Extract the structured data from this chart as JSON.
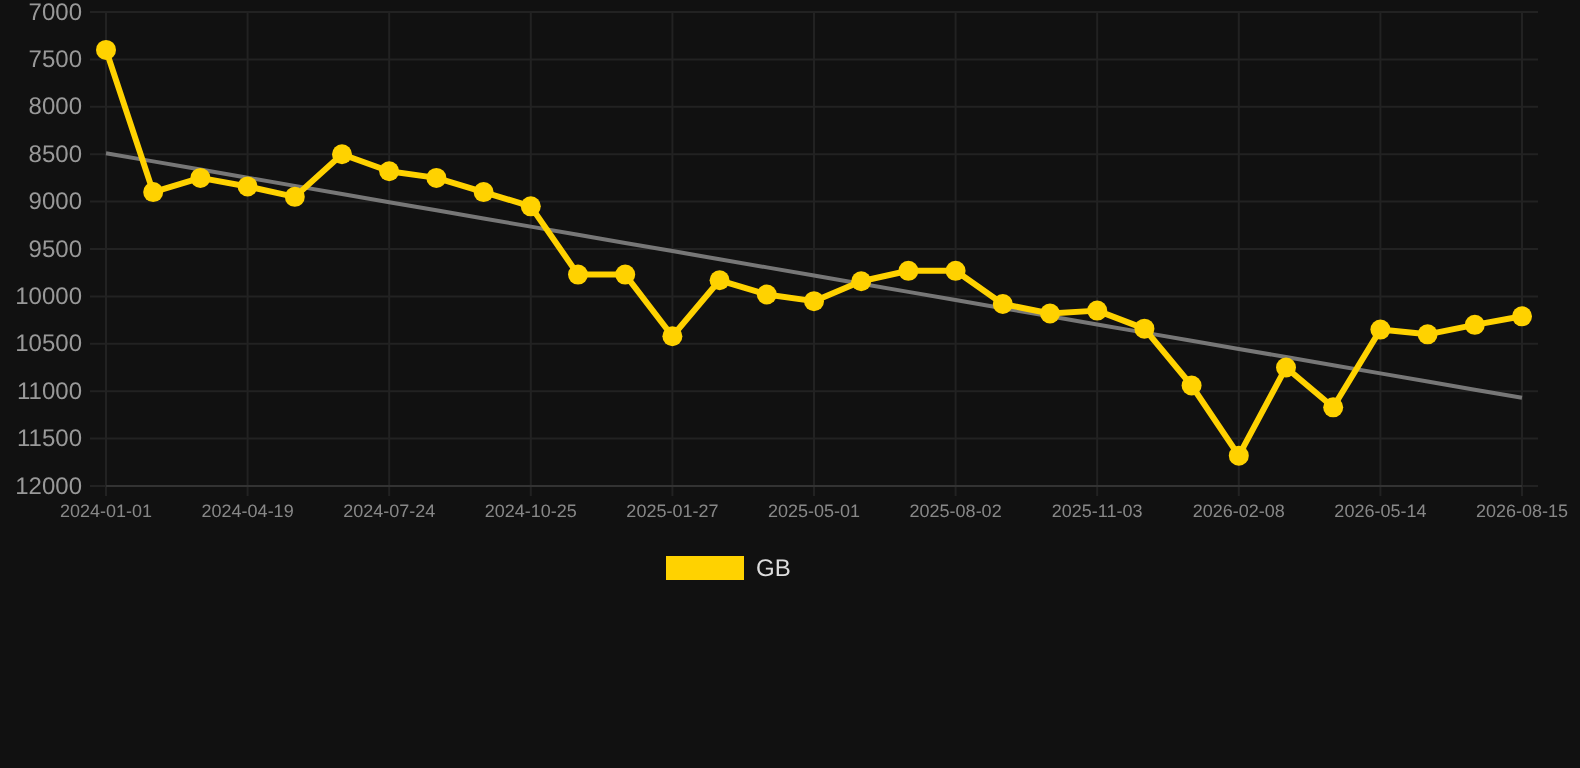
{
  "chart_data": {
    "type": "line",
    "categories": [
      "2024-01-01",
      null,
      null,
      "2024-04-19",
      null,
      null,
      "2024-07-24",
      null,
      null,
      "2024-10-25",
      null,
      null,
      "2025-01-27",
      null,
      null,
      "2025-05-01",
      null,
      null,
      "2025-08-02",
      null,
      null,
      "2025-11-03",
      null,
      null,
      "2026-02-08",
      null,
      null,
      "2026-05-14",
      null,
      null,
      "2026-08-15"
    ],
    "series": [
      {
        "name": "GB",
        "color": "#ffd200",
        "marker": "circle",
        "values": [
          7400,
          8900,
          8750,
          8840,
          8950,
          8500,
          8680,
          8750,
          8900,
          9050,
          9770,
          9770,
          10420,
          9830,
          9980,
          10050,
          9840,
          9730,
          9730,
          10080,
          10180,
          10150,
          10340,
          10940,
          11680,
          10750,
          11170,
          10350,
          10400,
          10300,
          10210
        ]
      },
      {
        "type": "line",
        "color": "#777777",
        "marker": "none",
        "values": [
          8490,
          8576,
          8662,
          8748,
          8834,
          8920,
          9006,
          9092,
          9178,
          9264,
          9350,
          9436,
          9522,
          9608,
          9694,
          9780,
          9866,
          9952,
          10038,
          10124,
          10210,
          10296,
          10382,
          10468,
          10554,
          10640,
          10726,
          10812,
          10898,
          10984,
          11070
        ]
      }
    ],
    "ylim": [
      12000,
      7000
    ],
    "yticks": [
      7000,
      7500,
      8000,
      8500,
      9000,
      9500,
      10000,
      10500,
      11000,
      11500,
      12000
    ],
    "grid": true,
    "legend": "bottom",
    "line_style": "solid"
  }
}
